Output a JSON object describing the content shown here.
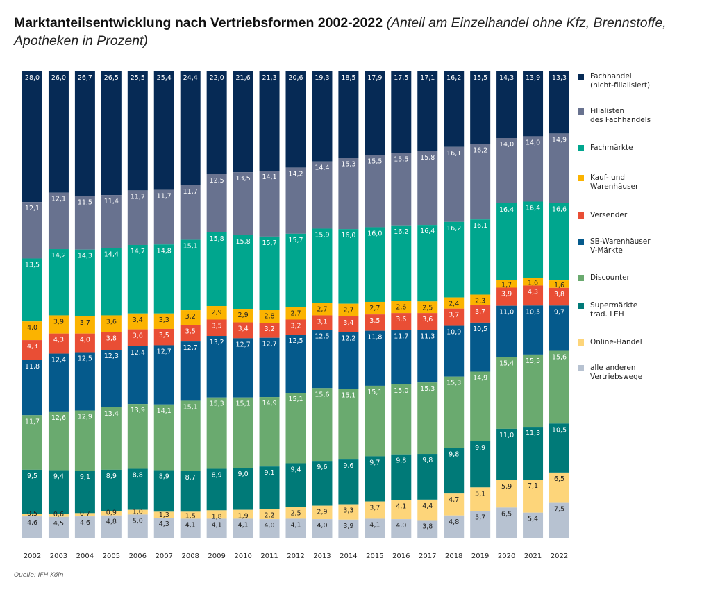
{
  "chart_data": {
    "type": "bar",
    "stacked": true,
    "title": "Marktanteilsentwicklung nach Vertriebsformen 2002-2022",
    "subtitle": "(Anteil am Einzelhandel ohne Kfz, Brennstoffe, Apotheken in Prozent)",
    "xlabel": "",
    "ylabel": "",
    "ylim": [
      0,
      100
    ],
    "grid": false,
    "legend_position": "right",
    "source": "Quelle: IFH Köln",
    "categories": [
      "2002",
      "2003",
      "2004",
      "2005",
      "2006",
      "2007",
      "2008",
      "2009",
      "2010",
      "2011",
      "2012",
      "2013",
      "2014",
      "2015",
      "2016",
      "2017",
      "2018",
      "2019",
      "2020",
      "2021",
      "2022"
    ],
    "series": [
      {
        "name": "Fachhandel\n(nicht-filialisiert)",
        "color": "#062a55",
        "label_color": "#ffffff",
        "values": [
          28.0,
          26.0,
          26.7,
          26.5,
          25.5,
          25.4,
          24.4,
          22.0,
          21.6,
          21.3,
          20.6,
          19.3,
          18.5,
          17.9,
          17.5,
          17.1,
          16.2,
          15.5,
          14.3,
          13.9,
          13.3
        ]
      },
      {
        "name": "Filialisten\ndes Fachhandels",
        "color": "#68728f",
        "label_color": "#ffffff",
        "values": [
          12.1,
          12.1,
          11.5,
          11.4,
          11.7,
          11.7,
          11.7,
          12.5,
          13.5,
          14.1,
          14.2,
          14.4,
          15.3,
          15.5,
          15.5,
          15.8,
          16.1,
          16.2,
          14.0,
          14.0,
          14.9
        ]
      },
      {
        "name": "Fachmärkte",
        "color": "#00a68e",
        "label_color": "#ffffff",
        "values": [
          13.5,
          14.2,
          14.3,
          14.4,
          14.7,
          14.8,
          15.1,
          15.8,
          15.8,
          15.7,
          15.7,
          15.9,
          16.0,
          16.0,
          16.2,
          16.4,
          16.2,
          16.1,
          16.4,
          16.4,
          16.6
        ]
      },
      {
        "name": "Kauf- und\nWarenhäuser",
        "color": "#fbb300",
        "label_color": "#222222",
        "values": [
          4.0,
          3.9,
          3.7,
          3.6,
          3.4,
          3.3,
          3.2,
          2.9,
          2.9,
          2.8,
          2.7,
          2.7,
          2.7,
          2.7,
          2.6,
          2.5,
          2.4,
          2.3,
          1.7,
          1.6,
          1.6
        ]
      },
      {
        "name": "Versender",
        "color": "#e94e35",
        "label_color": "#ffffff",
        "values": [
          4.3,
          4.3,
          4.0,
          3.8,
          3.6,
          3.5,
          3.5,
          3.5,
          3.4,
          3.2,
          3.2,
          3.1,
          3.4,
          3.5,
          3.6,
          3.6,
          3.7,
          3.7,
          3.9,
          4.3,
          3.8
        ]
      },
      {
        "name": "SB-Warenhäuser\nV-Märkte",
        "color": "#055a8c",
        "label_color": "#ffffff",
        "values": [
          11.8,
          12.4,
          12.5,
          12.3,
          12.4,
          12.7,
          12.7,
          13.2,
          12.7,
          12.7,
          12.5,
          12.5,
          12.2,
          11.8,
          11.7,
          11.3,
          10.9,
          10.5,
          11.0,
          10.5,
          9.7
        ]
      },
      {
        "name": "Discounter",
        "color": "#6aaa6f",
        "label_color": "#ffffff",
        "values": [
          11.7,
          12.6,
          12.9,
          13.4,
          13.9,
          14.1,
          15.1,
          15.3,
          15.1,
          14.9,
          15.1,
          15.6,
          15.1,
          15.1,
          15.0,
          15.3,
          15.3,
          14.9,
          15.4,
          15.5,
          15.6
        ]
      },
      {
        "name": "Supermärkte\ntrad. LEH",
        "color": "#007a78",
        "label_color": "#ffffff",
        "values": [
          9.5,
          9.4,
          9.1,
          8.9,
          8.8,
          8.9,
          8.7,
          8.9,
          9.0,
          9.1,
          9.4,
          9.6,
          9.6,
          9.7,
          9.8,
          9.8,
          9.8,
          9.9,
          11.0,
          11.3,
          10.5
        ]
      },
      {
        "name": "Online-Handel",
        "color": "#fdd57a",
        "label_color": "#222222",
        "values": [
          0.5,
          0.6,
          0.7,
          0.9,
          1.0,
          1.3,
          1.5,
          1.8,
          1.9,
          2.2,
          2.5,
          2.9,
          3.3,
          3.7,
          4.1,
          4.4,
          4.7,
          5.1,
          5.9,
          7.1,
          6.5
        ]
      },
      {
        "name": "alle anderen\nVertriebswege",
        "color": "#b7c2d1",
        "label_color": "#222222",
        "values": [
          4.6,
          4.5,
          4.6,
          4.8,
          5.0,
          4.3,
          4.1,
          4.1,
          4.1,
          4.0,
          4.1,
          4.0,
          3.9,
          4.1,
          4.0,
          3.8,
          4.8,
          5.7,
          6.5,
          5.4,
          7.5
        ]
      }
    ]
  }
}
